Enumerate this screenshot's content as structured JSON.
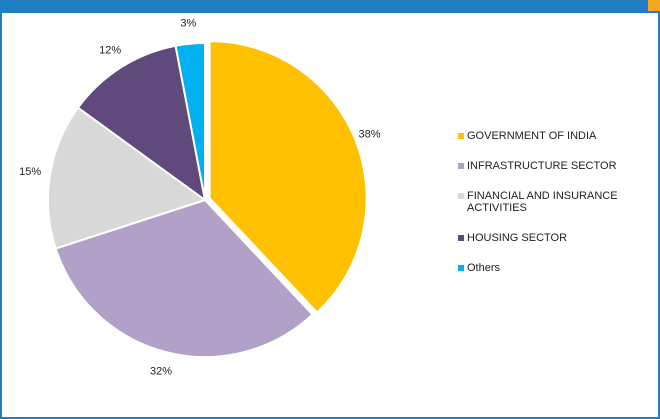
{
  "chart_data": {
    "type": "pie",
    "categories": [
      "GOVERNMENT OF INDIA",
      "INFRASTRUCTURE SECTOR",
      "FINANCIAL AND INSURANCE ACTIVITIES",
      "HOUSING SECTOR",
      "Others"
    ],
    "values": [
      38,
      32,
      15,
      12,
      3
    ],
    "value_labels": [
      "38%",
      "32%",
      "15%",
      "12%",
      "3%"
    ],
    "colors": [
      "#ffc000",
      "#b1a0c7",
      "#d9d9d9",
      "#604a7b",
      "#00b0f0"
    ],
    "legend": "right"
  }
}
